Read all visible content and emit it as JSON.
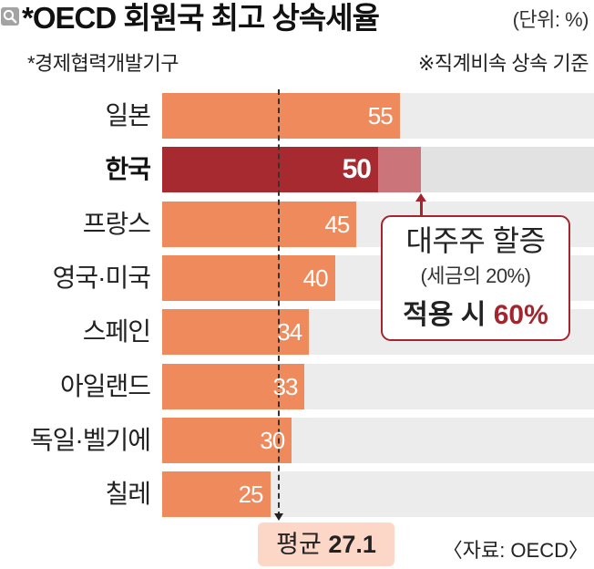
{
  "ui": {
    "zoom_icon": "search-icon"
  },
  "chart_data": {
    "type": "bar",
    "orientation": "horizontal",
    "title": "*OECD 회원국 최고 상속세율",
    "unit": "(단위: %)",
    "notes": {
      "left": "*경제협력개발기구",
      "right": "※직계비속 상속 기준"
    },
    "categories": [
      "일본",
      "한국",
      "프랑스",
      "영국·미국",
      "스페인",
      "아일랜드",
      "독일·벨기에",
      "칠레"
    ],
    "values": [
      55,
      50,
      45,
      40,
      34,
      33,
      30,
      25
    ],
    "highlight": {
      "index": 1,
      "value_with_surcharge": 60
    },
    "average": {
      "label": "평균",
      "value": 27.1
    },
    "callout": {
      "line1": "대주주 할증",
      "line2": "(세금의 20%)",
      "line3": "적용 시",
      "line3_value": "60%"
    },
    "source": "〈자료: OECD〉",
    "xlim": [
      0,
      100
    ],
    "grid": false,
    "colors": {
      "bar": "#ef8a5d",
      "highlight": "#a72a31",
      "surcharge": "#cb7479",
      "track": "#ececec",
      "track_highlight": "#e2e2e2",
      "average_box": "#fcd6c6",
      "callout_border": "#a3262f"
    }
  }
}
